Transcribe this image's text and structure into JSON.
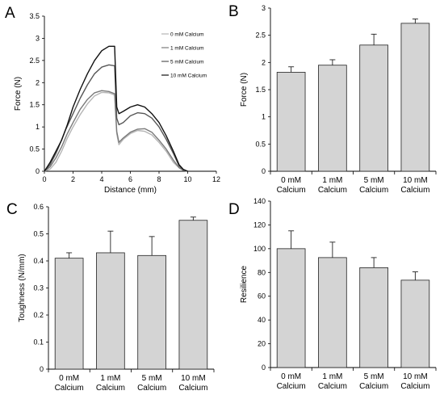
{
  "chart_data": [
    {
      "panel": "A",
      "type": "line",
      "xlabel": "Distance (mm)",
      "ylabel": "Force (N)",
      "xlim": [
        0,
        12
      ],
      "ylim": [
        0,
        3.5
      ],
      "xticks": [
        "0",
        "2",
        "4",
        "6",
        "8",
        "10",
        "12"
      ],
      "yticks": [
        "0",
        "0.5",
        "1",
        "1.5",
        "2",
        "2.5",
        "3",
        "3.5"
      ],
      "legend_position": "top-right",
      "series": [
        {
          "name": "0 mM Calcium",
          "color": "#b5b5b5",
          "x": [
            0,
            0.4,
            0.8,
            1.2,
            1.6,
            2,
            2.5,
            3,
            3.5,
            4,
            4.5,
            4.9,
            5.05,
            5.2,
            5.5,
            6,
            6.5,
            7,
            7.5,
            8,
            8.5,
            9,
            9.4,
            9.7,
            10
          ],
          "y": [
            0,
            0.05,
            0.2,
            0.45,
            0.75,
            1.0,
            1.28,
            1.52,
            1.7,
            1.78,
            1.77,
            1.72,
            0.85,
            0.6,
            0.72,
            0.85,
            0.92,
            0.9,
            0.82,
            0.65,
            0.45,
            0.2,
            0.08,
            0.02,
            0
          ]
        },
        {
          "name": "1 mM Calcium",
          "color": "#7a7a7a",
          "x": [
            0,
            0.4,
            0.8,
            1.2,
            1.6,
            2,
            2.5,
            3,
            3.5,
            4,
            4.5,
            4.9,
            5.05,
            5.2,
            5.5,
            6,
            6.5,
            7,
            7.5,
            8,
            8.5,
            9,
            9.4,
            9.7,
            10
          ],
          "y": [
            0,
            0.1,
            0.3,
            0.55,
            0.85,
            1.1,
            1.4,
            1.62,
            1.77,
            1.82,
            1.8,
            1.75,
            0.9,
            0.65,
            0.75,
            0.88,
            0.95,
            0.96,
            0.88,
            0.7,
            0.5,
            0.25,
            0.08,
            0.02,
            0
          ]
        },
        {
          "name": "5 mM Calcium",
          "color": "#575757",
          "x": [
            0,
            0.4,
            0.8,
            1,
            1.5,
            2,
            2.5,
            3,
            3.5,
            4,
            4.5,
            4.9,
            5.05,
            5.2,
            5.5,
            6,
            6.5,
            7,
            7.5,
            8,
            8.5,
            9,
            9.4,
            9.7,
            10
          ],
          "y": [
            0,
            0.15,
            0.4,
            0.55,
            0.95,
            1.3,
            1.65,
            1.95,
            2.2,
            2.35,
            2.4,
            2.38,
            1.2,
            1.05,
            1.1,
            1.25,
            1.32,
            1.3,
            1.2,
            1.0,
            0.72,
            0.4,
            0.12,
            0.03,
            0
          ]
        },
        {
          "name": "10 mM Calcium",
          "color": "#111111",
          "x": [
            0,
            0.4,
            0.8,
            1.2,
            1.6,
            2,
            2.5,
            3,
            3.5,
            4,
            4.5,
            4.9,
            5.05,
            5.2,
            5.5,
            6,
            6.5,
            7,
            7.5,
            8,
            8.5,
            9,
            9.4,
            9.7,
            10
          ],
          "y": [
            0,
            0.2,
            0.45,
            0.7,
            1.05,
            1.45,
            1.85,
            2.2,
            2.5,
            2.72,
            2.82,
            2.82,
            1.45,
            1.3,
            1.35,
            1.45,
            1.5,
            1.45,
            1.3,
            1.1,
            0.8,
            0.45,
            0.15,
            0.04,
            0
          ]
        }
      ]
    },
    {
      "panel": "B",
      "type": "bar",
      "ylabel": "Force (N)",
      "ylim": [
        0,
        3
      ],
      "yticks": [
        "0",
        "0.5",
        "1",
        "1.5",
        "2",
        "2.5",
        "3"
      ],
      "categories": [
        [
          "0 mM",
          "Calcium"
        ],
        [
          "1 mM",
          "Calcium"
        ],
        [
          "5 mM",
          "Calcium"
        ],
        [
          "10 mM",
          "Calcium"
        ]
      ],
      "values": [
        1.82,
        1.95,
        2.32,
        2.72
      ],
      "errors": [
        0.1,
        0.1,
        0.2,
        0.08
      ]
    },
    {
      "panel": "C",
      "type": "bar",
      "ylabel": "Toughness (N/mm)",
      "ylim": [
        0,
        0.6
      ],
      "yticks": [
        "0",
        "0.1",
        "0.2",
        "0.3",
        "0.4",
        "0.5",
        "0.6"
      ],
      "categories": [
        [
          "0 mM",
          "Calcium"
        ],
        [
          "1 mM",
          "Calcium"
        ],
        [
          "5 mM",
          "Calcium"
        ],
        [
          "10 mM",
          "Calcium"
        ]
      ],
      "values": [
        0.41,
        0.43,
        0.42,
        0.55
      ],
      "errors": [
        0.02,
        0.08,
        0.07,
        0.012
      ]
    },
    {
      "panel": "D",
      "type": "bar",
      "ylabel": "Resilience",
      "ylim": [
        0,
        140
      ],
      "yticks": [
        "0",
        "20",
        "40",
        "60",
        "80",
        "100",
        "120",
        "140"
      ],
      "categories": [
        [
          "0 mM",
          "Calcium"
        ],
        [
          "1 mM",
          "Calcium"
        ],
        [
          "5 mM",
          "Calcium"
        ],
        [
          "10 mM",
          "Calcium"
        ]
      ],
      "values": [
        100,
        92.5,
        84,
        73.5
      ],
      "errors": [
        15,
        13,
        8.5,
        7
      ]
    }
  ],
  "style": {
    "bar_fill": "#d4d4d4",
    "bar_stroke": "#222222",
    "axis_color": "#000000"
  }
}
